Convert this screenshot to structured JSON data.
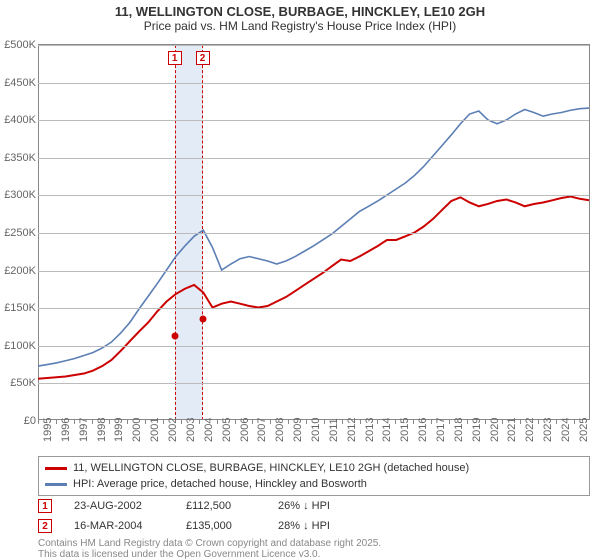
{
  "title": {
    "line1": "11, WELLINGTON CLOSE, BURBAGE, HINCKLEY, LE10 2GH",
    "line2": "Price paid vs. HM Land Registry's House Price Index (HPI)"
  },
  "chart": {
    "type": "line",
    "background_color": "#ffffff",
    "grid_color": "#bbbbbb",
    "axis_color": "#888888",
    "font_color": "#666666",
    "tick_fontsize": 11,
    "ylim": [
      0,
      500000
    ],
    "ytick_step": 50000,
    "yticks": [
      "£0",
      "£50K",
      "£100K",
      "£150K",
      "£200K",
      "£250K",
      "£300K",
      "£350K",
      "£400K",
      "£450K",
      "£500K"
    ],
    "x_start_year": 1995,
    "x_end_year": 2025,
    "xticks": [
      "1995",
      "1996",
      "1997",
      "1998",
      "1999",
      "2000",
      "2001",
      "2002",
      "2003",
      "2004",
      "2005",
      "2006",
      "2007",
      "2008",
      "2009",
      "2010",
      "2011",
      "2012",
      "2013",
      "2014",
      "2015",
      "2016",
      "2017",
      "2018",
      "2019",
      "2020",
      "2021",
      "2022",
      "2023",
      "2024",
      "2025"
    ],
    "series": [
      {
        "name": "property",
        "color": "#cc0000",
        "width": 2.0,
        "label": "11, WELLINGTON CLOSE, BURBAGE, HINCKLEY, LE10 2GH (detached house)",
        "values": [
          55,
          56,
          57,
          58,
          60,
          62,
          66,
          72,
          80,
          92,
          105,
          118,
          130,
          145,
          158,
          168,
          175,
          180,
          170,
          150,
          155,
          158,
          155,
          152,
          150,
          152,
          158,
          164,
          172,
          180,
          188,
          196,
          205,
          214,
          212,
          218,
          225,
          232,
          240,
          240,
          245,
          250,
          258,
          268,
          280,
          292,
          297,
          290,
          285,
          288,
          292,
          294,
          290,
          285,
          288,
          290,
          293,
          296,
          298,
          295,
          293
        ]
      },
      {
        "name": "hpi",
        "color": "#5b7fb5",
        "width": 1.6,
        "label": "HPI: Average price, detached house, Hinckley and Bosworth",
        "values": [
          72,
          74,
          76,
          79,
          82,
          86,
          90,
          96,
          104,
          116,
          130,
          148,
          165,
          182,
          200,
          218,
          232,
          245,
          253,
          230,
          200,
          208,
          215,
          218,
          215,
          212,
          208,
          212,
          218,
          225,
          232,
          240,
          248,
          258,
          268,
          278,
          285,
          292,
          300,
          308,
          316,
          326,
          338,
          352,
          366,
          380,
          395,
          408,
          412,
          400,
          395,
          400,
          408,
          414,
          410,
          405,
          408,
          410,
          413,
          415,
          416
        ]
      }
    ],
    "markers": [
      {
        "id": "1",
        "year_frac": 2002.65,
        "value": 112500,
        "color": "#cc0000"
      },
      {
        "id": "2",
        "year_frac": 2004.21,
        "value": 135000,
        "color": "#cc0000"
      }
    ],
    "marker_band": {
      "from_year": 2002.65,
      "to_year": 2004.21,
      "fill": "#e3ebf7",
      "border": "#cc0000"
    }
  },
  "legend": {
    "items": [
      {
        "color": "#cc0000",
        "label_path": "chart.series.0.label"
      },
      {
        "color": "#5b7fb5",
        "label_path": "chart.series.1.label"
      }
    ],
    "border_color": "#999999"
  },
  "transactions": [
    {
      "id": "1",
      "date": "23-AUG-2002",
      "price": "£112,500",
      "delta": "26% ↓ HPI"
    },
    {
      "id": "2",
      "date": "16-MAR-2004",
      "price": "£135,000",
      "delta": "28% ↓ HPI"
    }
  ],
  "credit": {
    "line1": "Contains HM Land Registry data © Crown copyright and database right 2025.",
    "line2": "This data is licensed under the Open Government Licence v3.0."
  }
}
